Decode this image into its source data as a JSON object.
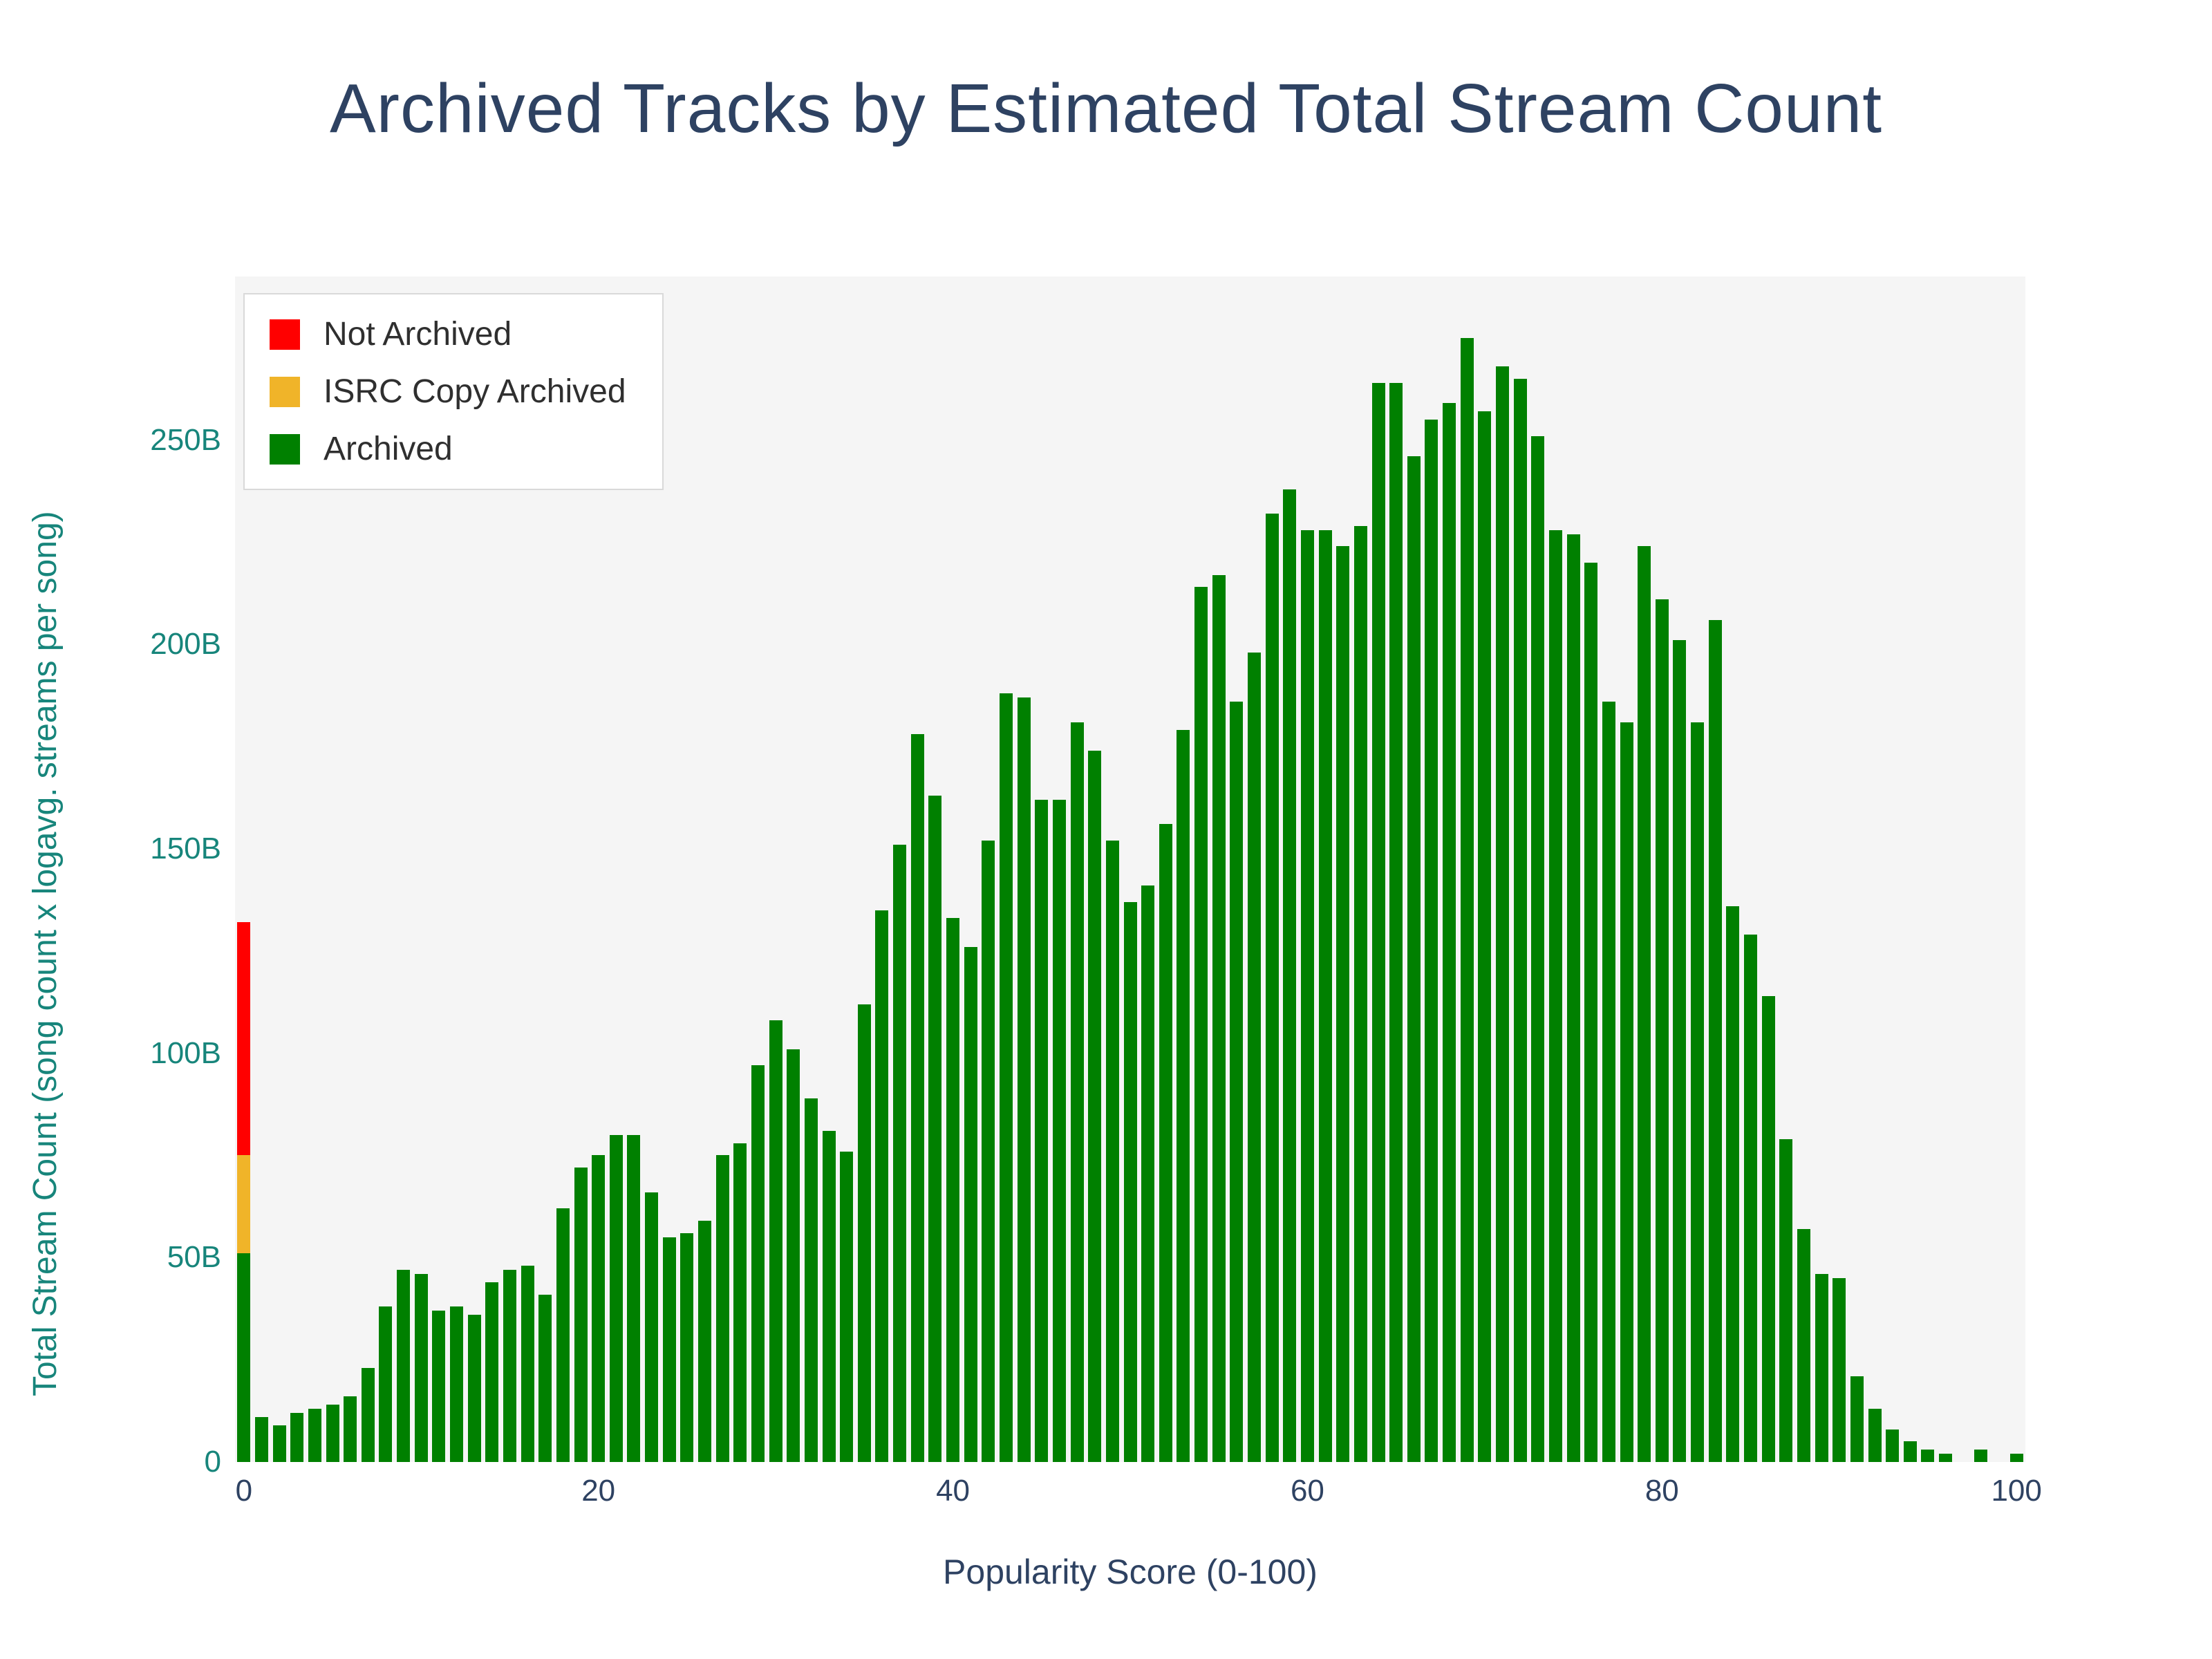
{
  "chart_data": {
    "type": "bar",
    "stacked": true,
    "title": "Archived Tracks by Estimated Total Stream Count",
    "xlabel": "Popularity Score (0-100)",
    "ylabel": "Total Stream Count (song count x logavg. streams per song)",
    "values_unit": "billions of streams (B)",
    "x": [
      0,
      1,
      2,
      3,
      4,
      5,
      6,
      7,
      8,
      9,
      10,
      11,
      12,
      13,
      14,
      15,
      16,
      17,
      18,
      19,
      20,
      21,
      22,
      23,
      24,
      25,
      26,
      27,
      28,
      29,
      30,
      31,
      32,
      33,
      34,
      35,
      36,
      37,
      38,
      39,
      40,
      41,
      42,
      43,
      44,
      45,
      46,
      47,
      48,
      49,
      50,
      51,
      52,
      53,
      54,
      55,
      56,
      57,
      58,
      59,
      60,
      61,
      62,
      63,
      64,
      65,
      66,
      67,
      68,
      69,
      70,
      71,
      72,
      73,
      74,
      75,
      76,
      77,
      78,
      79,
      80,
      81,
      82,
      83,
      84,
      85,
      86,
      87,
      88,
      89,
      90,
      91,
      92,
      93,
      94,
      95,
      96,
      97,
      98,
      99,
      100
    ],
    "series": [
      {
        "name": "Not Archived",
        "color": "#ff0000",
        "note": "only present at popularity score 0; all other scores are 0",
        "values": [
          57
        ]
      },
      {
        "name": "ISRC Copy Archived",
        "color": "#f0b429",
        "note": "only present at popularity score 0; all other scores are 0",
        "values": [
          24
        ]
      },
      {
        "name": "Archived",
        "color": "#008000",
        "values": [
          51,
          11,
          9,
          12,
          13,
          14,
          16,
          23,
          38,
          47,
          46,
          37,
          38,
          36,
          44,
          47,
          48,
          41,
          62,
          72,
          75,
          80,
          80,
          66,
          55,
          56,
          59,
          75,
          78,
          97,
          108,
          101,
          89,
          81,
          76,
          112,
          135,
          151,
          178,
          163,
          133,
          126,
          152,
          188,
          187,
          162,
          162,
          181,
          174,
          152,
          137,
          141,
          156,
          179,
          214,
          217,
          186,
          198,
          232,
          238,
          228,
          228,
          224,
          229,
          264,
          264,
          246,
          255,
          259,
          275,
          257,
          268,
          265,
          251,
          228,
          227,
          220,
          186,
          181,
          224,
          211,
          201,
          181,
          206,
          136,
          129,
          114,
          79,
          57,
          46,
          45,
          21,
          13,
          8,
          5,
          3,
          2,
          0,
          3,
          0,
          2
        ]
      }
    ],
    "ylim": [
      0,
      290
    ],
    "yticks": [
      {
        "value": 0,
        "label": "0"
      },
      {
        "value": 50,
        "label": "50B"
      },
      {
        "value": 100,
        "label": "100B"
      },
      {
        "value": 150,
        "label": "150B"
      },
      {
        "value": 200,
        "label": "200B"
      },
      {
        "value": 250,
        "label": "250B"
      }
    ],
    "xticks": [
      {
        "value": 0,
        "label": "0"
      },
      {
        "value": 20,
        "label": "20"
      },
      {
        "value": 40,
        "label": "40"
      },
      {
        "value": 60,
        "label": "60"
      },
      {
        "value": 80,
        "label": "80"
      },
      {
        "value": 100,
        "label": "100"
      }
    ],
    "legend_position": "top-left",
    "grid": false
  },
  "colors": {
    "title_text": "#2e4262",
    "x_axis_text": "#2e4262",
    "y_axis_text": "#17857b",
    "plot_background": "#f5f5f5",
    "page_background": "#ffffff",
    "legend_border": "#d9d9d9",
    "legend_text": "#2f2f2f"
  }
}
